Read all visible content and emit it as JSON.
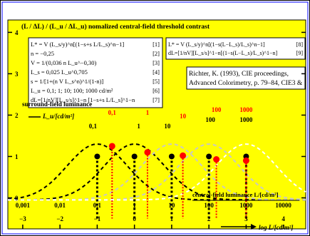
{
  "colors": {
    "background": "#ffff00",
    "frame_outer": "#000000",
    "frame_inner": "#0000ff",
    "curve_black": "#000000",
    "curve_grey": "#c8c8c8",
    "curve_white": "#ffffff",
    "marker_black": "#000000",
    "marker_red": "#ff0000",
    "label_red": "#ff0000"
  },
  "header": {
    "title": "(L / ΔL) / (L_u / ΔL_u)   nomalized central-field threshold contrast"
  },
  "formulas_left": [
    {
      "text": "L* = V (L_s/y)^n[(1−s+s L/L_s)^n−1]",
      "ref": "[1]"
    },
    {
      "text": "n = −0,25",
      "ref": "[2]"
    },
    {
      "text": "V = 1/(0,036 n L_u^−0,30)",
      "ref": "[3]"
    },
    {
      "text": "L_s = 0,025 L_u^0,705",
      "ref": "[4]"
    },
    {
      "text": "s = 1/[1+(n V L_s^n)^1/(1-n)]",
      "ref": "[5]"
    },
    {
      "text": "L_u = 0,1; 1; 10; 100; 1000 cd/m²",
      "ref": "[6]"
    },
    {
      "text": "dL=[1/nV][L_s/s]^1−n [1−s+s L/L_s]^1−n",
      "ref": "[7]"
    }
  ],
  "formulas_right": [
    {
      "text": "L* = V (L_s/y)^n[(1−s(L−L_s)/L_s)^n−1]",
      "ref": "[8]"
    },
    {
      "text": "dL=[1/nV][L_s/s]^1−n[(1−s(L−L_s)/L_s)^1−n]",
      "ref": "[9]"
    }
  ],
  "reference": {
    "line1": "Richter, K. (1993), CIE proceedings,",
    "line2": "Advanced Colorimetry, p. 79–84, CIE3 &"
  },
  "surround_label": "surround-field luminance",
  "surround_unit": "L_u/[cd/m²]",
  "surround_labels": [
    {
      "text": "0,1",
      "color": "black"
    },
    {
      "text": "0,1",
      "color": "red"
    },
    {
      "text": "1",
      "color": "red"
    },
    {
      "text": "1",
      "color": "black"
    },
    {
      "text": "10",
      "color": "black"
    },
    {
      "text": "10",
      "color": "red"
    },
    {
      "text": "100",
      "color": "red"
    },
    {
      "text": "100",
      "color": "black"
    },
    {
      "text": "1000",
      "color": "red"
    },
    {
      "text": "1000",
      "color": "black"
    }
  ],
  "central_label": "central-field luminance L/[cd/m²]",
  "x_axis_label": "log L/[cd/m²]",
  "chart_data": {
    "type": "line",
    "x_scale": "log L",
    "xlim": [
      -3.4,
      4.6
    ],
    "ylim": [
      -0.75,
      4.3
    ],
    "y_ticks": [
      0,
      1,
      2,
      3,
      4
    ],
    "x_ticks": [
      -3,
      -2,
      -1,
      0,
      1,
      2,
      3,
      4
    ],
    "x_tick_labels": [
      "−3",
      "−2",
      "−1",
      "0",
      "1",
      "2",
      "3",
      "4"
    ],
    "lin_ticks": [
      -3,
      -2,
      -1,
      0,
      1,
      2,
      3,
      4
    ],
    "lin_tick_labels": [
      "0,001",
      "0,01",
      "0,1",
      "1",
      "10",
      "100",
      "1000",
      "10000"
    ],
    "grid": false,
    "series": [
      {
        "name": "0,1",
        "color": "black",
        "style": "dashed",
        "peak_x": -1,
        "width": 1.0,
        "peak_y": 1.35
      },
      {
        "name": "1",
        "color": "black",
        "style": "dashed",
        "peak_x": 0,
        "width": 1.0,
        "peak_y": 1.35
      },
      {
        "name": "10",
        "color": "grey",
        "style": "dashed",
        "peak_x": 1,
        "width": 1.0,
        "peak_y": 1.35
      },
      {
        "name": "100",
        "color": "grey",
        "style": "dashed",
        "peak_x": 2,
        "width": 1.0,
        "peak_y": 1.35
      },
      {
        "name": "1000",
        "color": "white",
        "style": "dashed",
        "peak_x": 3,
        "width": 1.0,
        "peak_y": 1.35
      }
    ],
    "markers_black": [
      {
        "x": -1,
        "y": 1
      },
      {
        "x": 0,
        "y": 1
      },
      {
        "x": 1,
        "y": 1
      },
      {
        "x": 2,
        "y": 1
      },
      {
        "x": 3,
        "y": 1
      }
    ],
    "markers_red": [
      {
        "x": -0.6,
        "y": 1.25
      },
      {
        "x": 0.35,
        "y": 1.1
      },
      {
        "x": 1.3,
        "y": 1.02
      },
      {
        "x": 2.2,
        "y": 0.93
      },
      {
        "x": 3.0,
        "y": 0.9
      }
    ]
  }
}
